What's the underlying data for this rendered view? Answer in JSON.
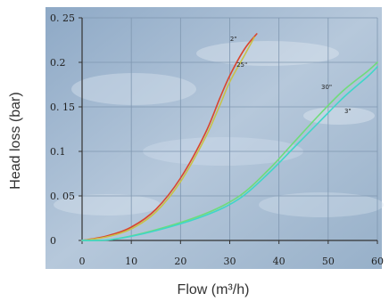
{
  "chart_data": {
    "type": "line",
    "xlabel": "Flow (m³/h)",
    "ylabel": "Head loss (bar)",
    "xlim": [
      0,
      60
    ],
    "ylim": [
      0,
      0.25
    ],
    "x_ticks": [
      "0",
      "10",
      "20",
      "30",
      "40",
      "50",
      "60"
    ],
    "y_ticks": [
      "0",
      "0. 05",
      "0.1",
      "0. 15",
      "0.2",
      "0. 25"
    ],
    "grid": true,
    "series": [
      {
        "name": "2\"",
        "color": "#d9452e",
        "x": [
          0,
          5,
          10,
          15,
          20,
          25,
          28,
          30,
          33,
          35.5
        ],
        "y": [
          0,
          0.005,
          0.015,
          0.035,
          0.07,
          0.12,
          0.16,
          0.185,
          0.215,
          0.232
        ]
      },
      {
        "name": "25\"",
        "color": "#c7c24a",
        "x": [
          0,
          5,
          10,
          15,
          20,
          25,
          28,
          30,
          33,
          35
        ],
        "y": [
          0,
          0.004,
          0.013,
          0.032,
          0.066,
          0.115,
          0.152,
          0.178,
          0.208,
          0.228
        ]
      },
      {
        "name": "30\"",
        "color": "#6fdc7a",
        "x": [
          0,
          6,
          15,
          25,
          32,
          38,
          43,
          48,
          53,
          58,
          60
        ],
        "y": [
          0,
          0.001,
          0.012,
          0.03,
          0.05,
          0.08,
          0.11,
          0.14,
          0.168,
          0.19,
          0.2
        ]
      },
      {
        "name": "3\"",
        "color": "#3fd6c8",
        "x": [
          0,
          6,
          15,
          25,
          32,
          38,
          43,
          48,
          53,
          58,
          60
        ],
        "y": [
          0,
          0.001,
          0.011,
          0.028,
          0.047,
          0.076,
          0.104,
          0.132,
          0.16,
          0.184,
          0.195
        ]
      }
    ]
  }
}
